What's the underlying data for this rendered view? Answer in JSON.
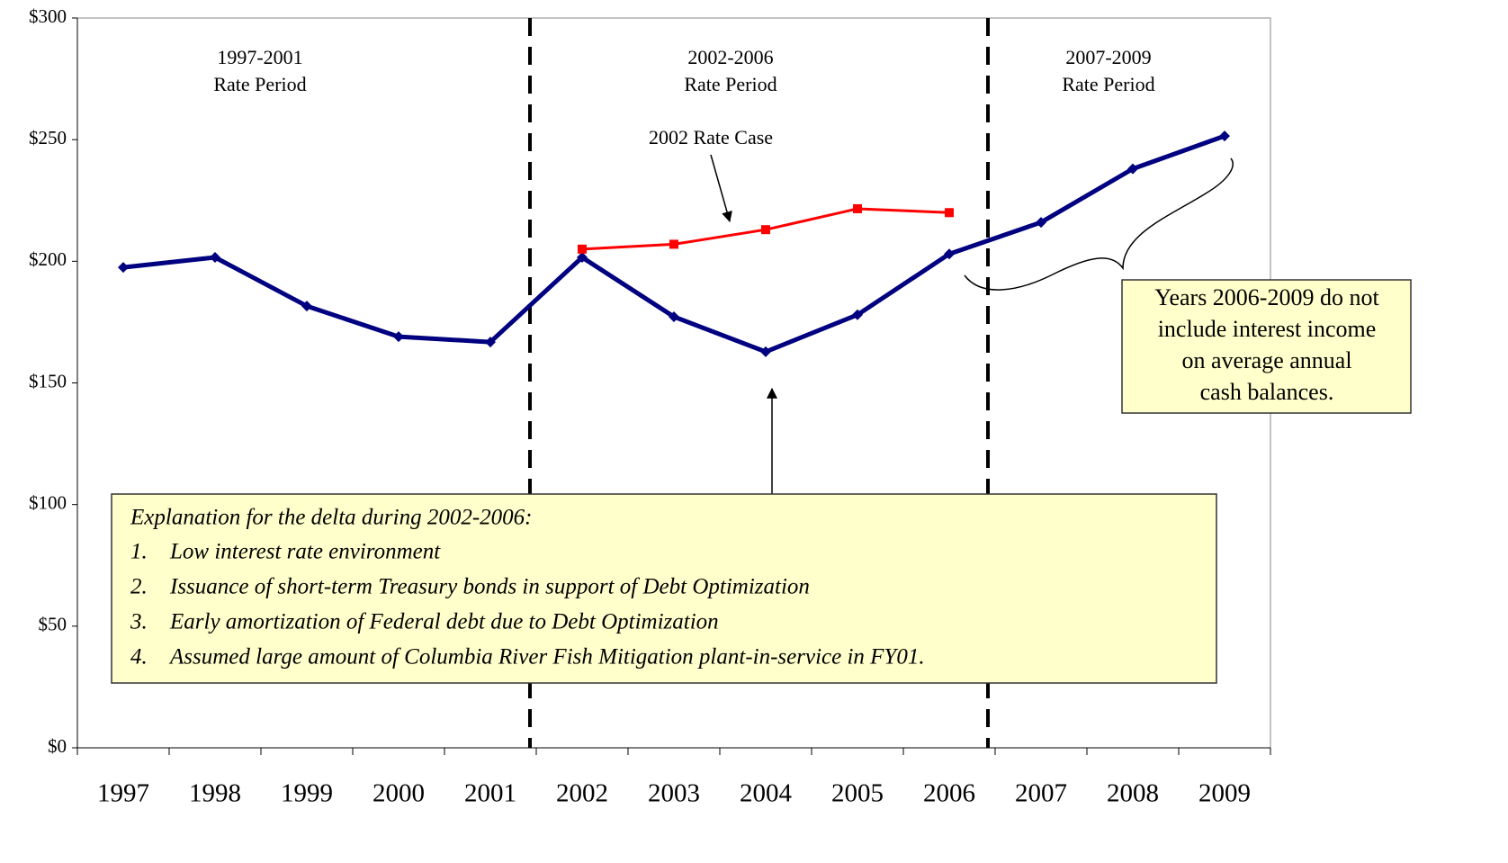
{
  "chart_data": {
    "type": "line",
    "categories": [
      "1997",
      "1998",
      "1999",
      "2000",
      "2001",
      "2002",
      "2003",
      "2004",
      "2005",
      "2006",
      "2007",
      "2008",
      "2009"
    ],
    "series": [
      {
        "color": "#000080",
        "marker": "diamond",
        "values": [
          197.5,
          201.6,
          181.6,
          169,
          166.8,
          201.6,
          177.2,
          162.8,
          178,
          203,
          216,
          238,
          251.5
        ]
      },
      {
        "color": "#ff0000",
        "marker": "square",
        "values": [
          null,
          null,
          null,
          null,
          null,
          205,
          207,
          213,
          221.6,
          220,
          null,
          null,
          null
        ]
      }
    ],
    "ylim": [
      0,
      300
    ],
    "yticks": [
      {
        "value": 0,
        "label": "$0"
      },
      {
        "value": 50,
        "label": "$50"
      },
      {
        "value": 100,
        "label": "$100"
      },
      {
        "value": 150,
        "label": "$150"
      },
      {
        "value": 200,
        "label": "$200"
      },
      {
        "value": 250,
        "label": "$250"
      },
      {
        "value": 300,
        "label": "$300"
      }
    ],
    "annotations": {
      "periods": [
        [
          "1997-2001",
          "Rate Period"
        ],
        [
          "2002-2006",
          "Rate Period"
        ],
        [
          "2007-2009",
          "Rate Period"
        ]
      ],
      "rate_case": "2002 Rate Case",
      "note": [
        "Years 2006-2009 do not",
        "include interest income",
        "on average annual",
        "cash balances."
      ],
      "explanation": {
        "title": "Explanation for the delta during 2002-2006:",
        "items": [
          {
            "number": "1.",
            "text": "Low interest rate environment"
          },
          {
            "number": "2.",
            "text": "Issuance of short-term Treasury bonds in support of Debt Optimization"
          },
          {
            "number": "3.",
            "text": "Early amortization of Federal debt due to Debt Optimization"
          },
          {
            "number": "4.",
            "text": "Assumed large amount of Columbia River Fish Mitigation plant-in-service in FY01."
          }
        ]
      }
    }
  }
}
